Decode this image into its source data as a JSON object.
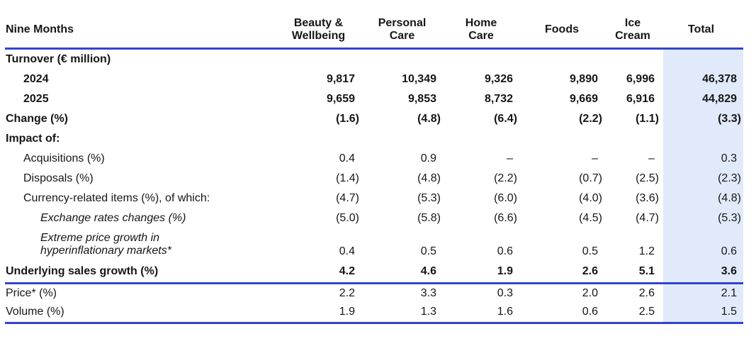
{
  "table": {
    "corner_header": "Nine Months",
    "column_headers": [
      "Beauty &\nWellbeing",
      "Personal\nCare",
      "Home\nCare",
      "Foods",
      "Ice Cream",
      "Total"
    ],
    "rows": [
      {
        "label": "Turnover (€ million)",
        "style": "bold",
        "indent": 0,
        "size": "first",
        "values": [
          "",
          "",
          "",
          "",
          "",
          ""
        ]
      },
      {
        "label": "2024",
        "style": "bold",
        "indent": 1,
        "values": [
          "9,817",
          "10,349",
          "9,326",
          "9,890",
          "6,996",
          "46,378"
        ]
      },
      {
        "label": "2025",
        "style": "bold",
        "indent": 1,
        "values": [
          "9,659",
          "9,853",
          "8,732",
          "9,669",
          "6,916",
          "44,829"
        ]
      },
      {
        "label": "Change (%)",
        "style": "bold",
        "indent": 0,
        "values": [
          "(1.6)",
          "(4.8)",
          "(6.4)",
          "(2.2)",
          "(1.1)",
          "(3.3)"
        ]
      },
      {
        "label": "Impact of:",
        "style": "bold",
        "indent": 0,
        "values": [
          "",
          "",
          "",
          "",
          "",
          ""
        ]
      },
      {
        "label": "Acquisitions (%)",
        "style": "regular",
        "indent": 1,
        "values": [
          "0.4",
          "0.9",
          "–",
          "–",
          "–",
          "0.3"
        ]
      },
      {
        "label": "Disposals (%)",
        "style": "regular",
        "indent": 1,
        "values": [
          "(1.4)",
          "(4.8)",
          "(2.2)",
          "(0.7)",
          "(2.5)",
          "(2.3)"
        ]
      },
      {
        "label": "Currency-related items (%), of which:",
        "style": "regular",
        "indent": 1,
        "values": [
          "(4.7)",
          "(5.3)",
          "(6.0)",
          "(4.0)",
          "(3.6)",
          "(4.8)"
        ]
      },
      {
        "label": "Exchange rates changes (%)",
        "style": "italic",
        "indent": 2,
        "values": [
          "(5.0)",
          "(5.8)",
          "(6.6)",
          "(4.5)",
          "(4.7)",
          "(5.3)"
        ]
      },
      {
        "label": "Extreme price growth in hyperinflationary markets*",
        "style": "italic",
        "indent": 2,
        "size": "tall",
        "wrap": true,
        "values": [
          "0.4",
          "0.5",
          "0.6",
          "0.5",
          "1.2",
          "0.6"
        ]
      },
      {
        "label": "Underlying sales growth (%)",
        "style": "bold",
        "indent": 0,
        "size": "rule",
        "rule_below": true,
        "values": [
          "4.2",
          "4.6",
          "1.9",
          "2.6",
          "5.1",
          "3.6"
        ]
      },
      {
        "label": "Price* (%)",
        "style": "regular",
        "indent": 0,
        "values": [
          "2.2",
          "3.3",
          "0.3",
          "2.0",
          "2.6",
          "2.1"
        ]
      },
      {
        "label": "Volume (%)",
        "style": "regular",
        "indent": 0,
        "values": [
          "1.9",
          "1.3",
          "1.6",
          "0.6",
          "2.5",
          "1.5"
        ]
      }
    ],
    "colors": {
      "rule_blue": "#3244ce",
      "total_highlight": "#e1eafa",
      "text": "#161616"
    }
  }
}
